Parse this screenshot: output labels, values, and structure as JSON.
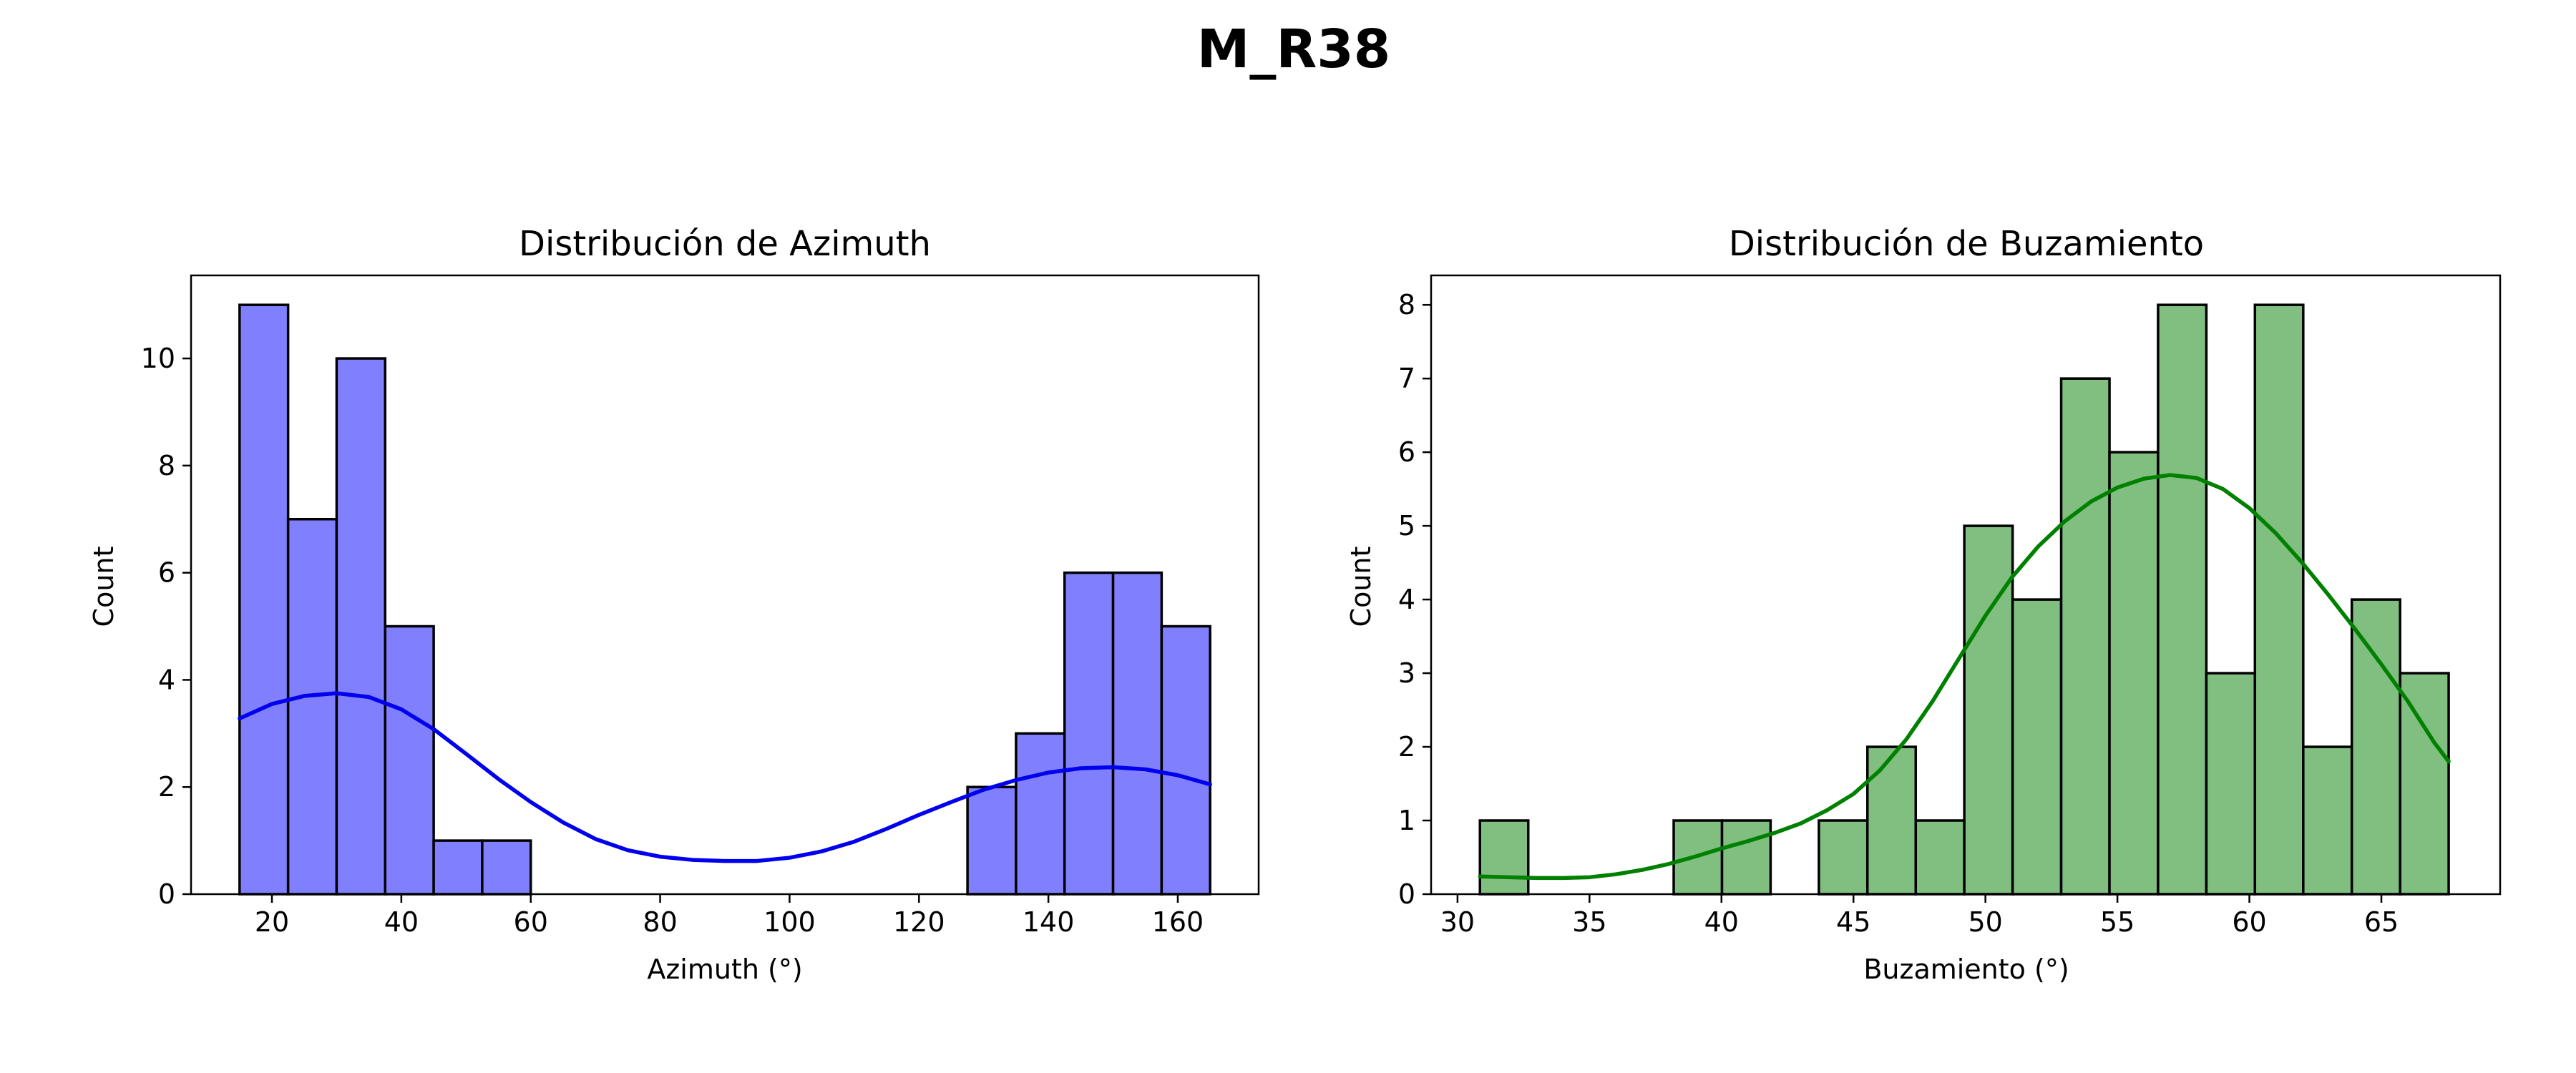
{
  "figure": {
    "suptitle": "M_R38"
  },
  "chart_data": [
    {
      "type": "bar",
      "title": "Distribución de Azimuth",
      "xlabel": "Azimuth (°)",
      "ylabel": "Count",
      "xlim": [
        7.5,
        172.5
      ],
      "ylim": [
        0,
        11.55
      ],
      "xticks": [
        20,
        40,
        60,
        80,
        100,
        120,
        140,
        160
      ],
      "yticks": [
        0,
        2,
        4,
        6,
        8,
        10
      ],
      "bar_color": "#8080ff",
      "edge_color": "#000000",
      "kde_color": "#0000ee",
      "bins": [
        {
          "x0": 15.0,
          "x1": 22.5,
          "count": 11
        },
        {
          "x0": 22.5,
          "x1": 30.0,
          "count": 7
        },
        {
          "x0": 30.0,
          "x1": 37.5,
          "count": 10
        },
        {
          "x0": 37.5,
          "x1": 45.0,
          "count": 5
        },
        {
          "x0": 45.0,
          "x1": 52.5,
          "count": 1
        },
        {
          "x0": 52.5,
          "x1": 60.0,
          "count": 1
        },
        {
          "x0": 60.0,
          "x1": 67.5,
          "count": 0
        },
        {
          "x0": 67.5,
          "x1": 75.0,
          "count": 0
        },
        {
          "x0": 75.0,
          "x1": 82.5,
          "count": 0
        },
        {
          "x0": 82.5,
          "x1": 90.0,
          "count": 0
        },
        {
          "x0": 90.0,
          "x1": 97.5,
          "count": 0
        },
        {
          "x0": 97.5,
          "x1": 105.0,
          "count": 0
        },
        {
          "x0": 105.0,
          "x1": 112.5,
          "count": 0
        },
        {
          "x0": 112.5,
          "x1": 120.0,
          "count": 0
        },
        {
          "x0": 120.0,
          "x1": 127.5,
          "count": 0
        },
        {
          "x0": 127.5,
          "x1": 135.0,
          "count": 2
        },
        {
          "x0": 135.0,
          "x1": 142.5,
          "count": 3
        },
        {
          "x0": 142.5,
          "x1": 150.0,
          "count": 6
        },
        {
          "x0": 150.0,
          "x1": 157.5,
          "count": 6
        },
        {
          "x0": 157.5,
          "x1": 165.0,
          "count": 5
        }
      ],
      "kde": [
        [
          15,
          3.28
        ],
        [
          20,
          3.55
        ],
        [
          25,
          3.7
        ],
        [
          30,
          3.75
        ],
        [
          35,
          3.68
        ],
        [
          40,
          3.45
        ],
        [
          45,
          3.08
        ],
        [
          50,
          2.62
        ],
        [
          55,
          2.15
        ],
        [
          60,
          1.72
        ],
        [
          65,
          1.34
        ],
        [
          70,
          1.03
        ],
        [
          75,
          0.82
        ],
        [
          80,
          0.7
        ],
        [
          85,
          0.64
        ],
        [
          90,
          0.62
        ],
        [
          95,
          0.62
        ],
        [
          100,
          0.68
        ],
        [
          105,
          0.8
        ],
        [
          110,
          0.98
        ],
        [
          115,
          1.22
        ],
        [
          120,
          1.48
        ],
        [
          125,
          1.72
        ],
        [
          130,
          1.95
        ],
        [
          135,
          2.13
        ],
        [
          140,
          2.27
        ],
        [
          145,
          2.35
        ],
        [
          150,
          2.37
        ],
        [
          155,
          2.33
        ],
        [
          160,
          2.22
        ],
        [
          165,
          2.05
        ]
      ]
    },
    {
      "type": "bar",
      "title": "Distribución de Buzamiento",
      "xlabel": "Buzamiento (°)",
      "ylabel": "Count",
      "xlim": [
        29.0,
        69.5
      ],
      "ylim": [
        0,
        8.4
      ],
      "xticks": [
        30,
        35,
        40,
        45,
        50,
        55,
        60,
        65
      ],
      "yticks": [
        0,
        1,
        2,
        3,
        4,
        5,
        6,
        7,
        8
      ],
      "bar_color": "#80bf80",
      "edge_color": "#000000",
      "kde_color": "#008000",
      "bins": [
        {
          "x0": 30.85,
          "x1": 32.68,
          "count": 1
        },
        {
          "x0": 32.68,
          "x1": 34.52,
          "count": 0
        },
        {
          "x0": 34.52,
          "x1": 36.35,
          "count": 0
        },
        {
          "x0": 36.35,
          "x1": 38.19,
          "count": 0
        },
        {
          "x0": 38.19,
          "x1": 40.02,
          "count": 1
        },
        {
          "x0": 40.02,
          "x1": 41.86,
          "count": 1
        },
        {
          "x0": 41.86,
          "x1": 43.69,
          "count": 0
        },
        {
          "x0": 43.69,
          "x1": 45.53,
          "count": 1
        },
        {
          "x0": 45.53,
          "x1": 47.36,
          "count": 2
        },
        {
          "x0": 47.36,
          "x1": 49.2,
          "count": 1
        },
        {
          "x0": 49.2,
          "x1": 51.03,
          "count": 5
        },
        {
          "x0": 51.03,
          "x1": 52.87,
          "count": 4
        },
        {
          "x0": 52.87,
          "x1": 54.7,
          "count": 7
        },
        {
          "x0": 54.7,
          "x1": 56.54,
          "count": 6
        },
        {
          "x0": 56.54,
          "x1": 58.37,
          "count": 8
        },
        {
          "x0": 58.37,
          "x1": 60.21,
          "count": 3
        },
        {
          "x0": 60.21,
          "x1": 62.04,
          "count": 8
        },
        {
          "x0": 62.04,
          "x1": 63.88,
          "count": 2
        },
        {
          "x0": 63.88,
          "x1": 65.71,
          "count": 4
        },
        {
          "x0": 65.71,
          "x1": 67.55,
          "count": 3
        }
      ],
      "kde": [
        [
          30.85,
          0.24
        ],
        [
          32,
          0.23
        ],
        [
          33,
          0.22
        ],
        [
          34,
          0.22
        ],
        [
          35,
          0.23
        ],
        [
          36,
          0.27
        ],
        [
          37,
          0.33
        ],
        [
          38,
          0.41
        ],
        [
          39,
          0.51
        ],
        [
          40,
          0.62
        ],
        [
          41,
          0.72
        ],
        [
          42,
          0.83
        ],
        [
          43,
          0.96
        ],
        [
          44,
          1.14
        ],
        [
          45,
          1.36
        ],
        [
          46,
          1.68
        ],
        [
          47,
          2.1
        ],
        [
          48,
          2.62
        ],
        [
          49,
          3.2
        ],
        [
          50,
          3.78
        ],
        [
          51,
          4.3
        ],
        [
          52,
          4.72
        ],
        [
          53,
          5.06
        ],
        [
          54,
          5.33
        ],
        [
          55,
          5.52
        ],
        [
          56,
          5.64
        ],
        [
          57,
          5.69
        ],
        [
          58,
          5.65
        ],
        [
          59,
          5.5
        ],
        [
          60,
          5.24
        ],
        [
          61,
          4.9
        ],
        [
          62,
          4.5
        ],
        [
          63,
          4.06
        ],
        [
          64,
          3.6
        ],
        [
          65,
          3.12
        ],
        [
          66,
          2.62
        ],
        [
          67,
          2.06
        ],
        [
          67.55,
          1.8
        ]
      ]
    }
  ]
}
